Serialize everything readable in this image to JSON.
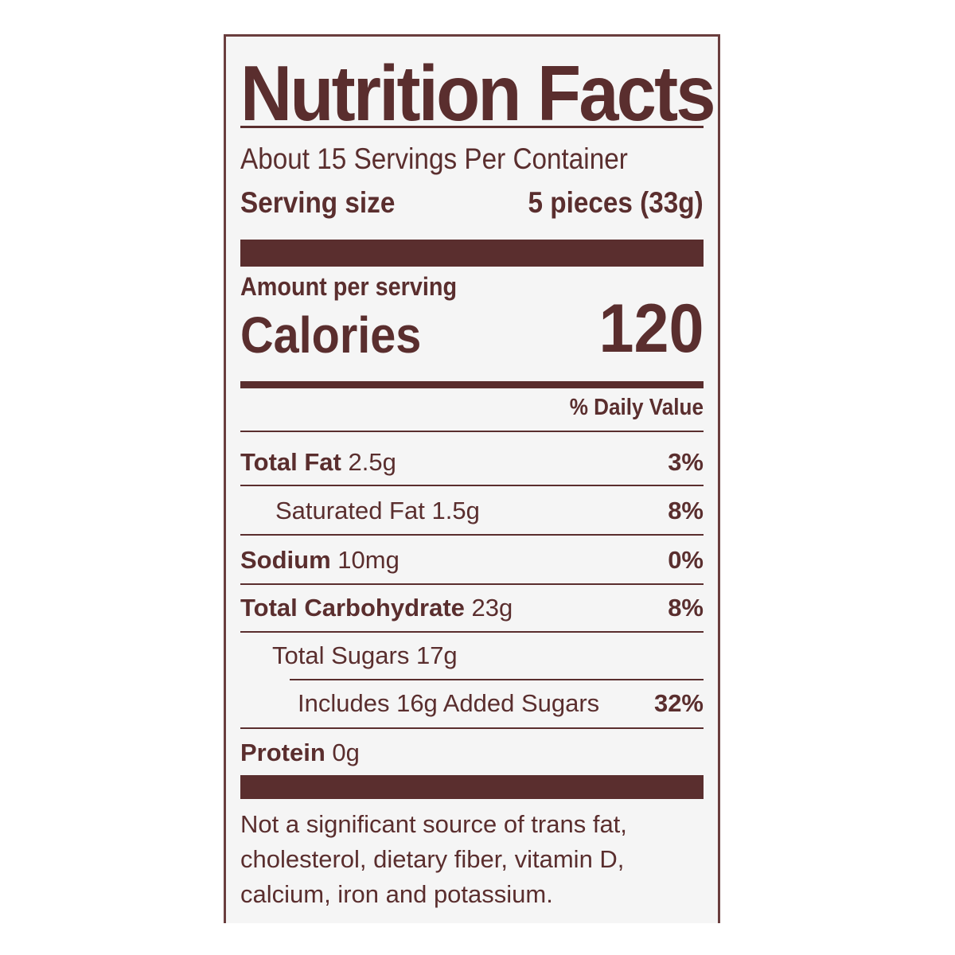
{
  "title": "Nutrition Facts",
  "servings_per_container": "About 15 Servings Per Container",
  "serving_size_label": "Serving size",
  "serving_size_value": "5 pieces (33g)",
  "amount_per_serving": "Amount per serving",
  "calories_label": "Calories",
  "calories_value": "120",
  "daily_value_header": "% Daily Value",
  "nutrients": [
    {
      "name": "Total Fat",
      "amount": "2.5g",
      "dv": "3%"
    },
    {
      "name": "Saturated Fat",
      "amount": "1.5g",
      "dv": "8%"
    },
    {
      "name": "Sodium",
      "amount": "10mg",
      "dv": "0%"
    },
    {
      "name": "Total Carbohydrate",
      "amount": "23g",
      "dv": "8%"
    },
    {
      "name": "Total Sugars",
      "amount": "17g",
      "dv": ""
    },
    {
      "name": "Includes 16g Added Sugars",
      "amount": "",
      "dv": "32%"
    },
    {
      "name": "Protein",
      "amount": "0g",
      "dv": ""
    }
  ],
  "footnote": [
    "Not a significant source of trans fat,",
    "cholesterol, dietary fiber, vitamin D,",
    "calcium, iron and potassium."
  ],
  "colors": {
    "ink": "#5a2e2e",
    "background": "#f5f5f5"
  }
}
